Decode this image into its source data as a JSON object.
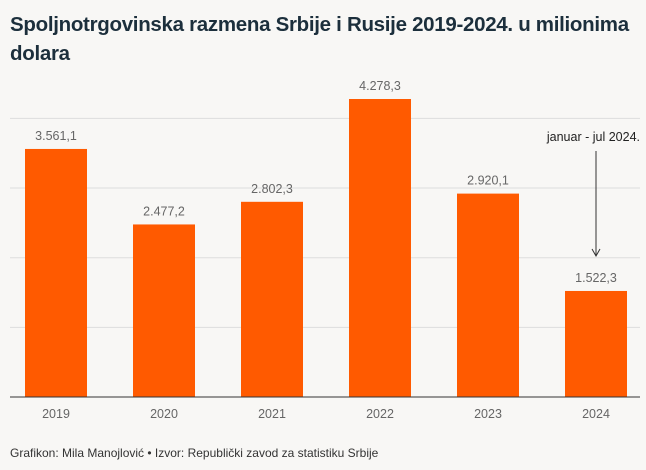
{
  "chart_data": {
    "type": "bar",
    "title": "Spoljnotrgovinska razmena Srbije i Rusije 2019-2024. u milionima dolara",
    "categories": [
      "2019",
      "2020",
      "2021",
      "2022",
      "2023",
      "2024"
    ],
    "values": [
      3561.1,
      2477.2,
      2802.3,
      4278.3,
      2920.1,
      1522.3
    ],
    "value_labels": [
      "3.561,1",
      "2.477,2",
      "2.802,3",
      "4.278,3",
      "2.920,1",
      "1.522,3"
    ],
    "ylim": [
      0,
      4278.3
    ],
    "gridlines": [
      1000,
      2000,
      3000,
      4000
    ],
    "grid": true,
    "bar_color": "#ff5a00",
    "annotation": {
      "category": "2024",
      "text": "januar - jul 2024."
    }
  },
  "footer": "Grafikon: Mila Manojlović • Izvor: Republički zavod za statistiku Srbije"
}
